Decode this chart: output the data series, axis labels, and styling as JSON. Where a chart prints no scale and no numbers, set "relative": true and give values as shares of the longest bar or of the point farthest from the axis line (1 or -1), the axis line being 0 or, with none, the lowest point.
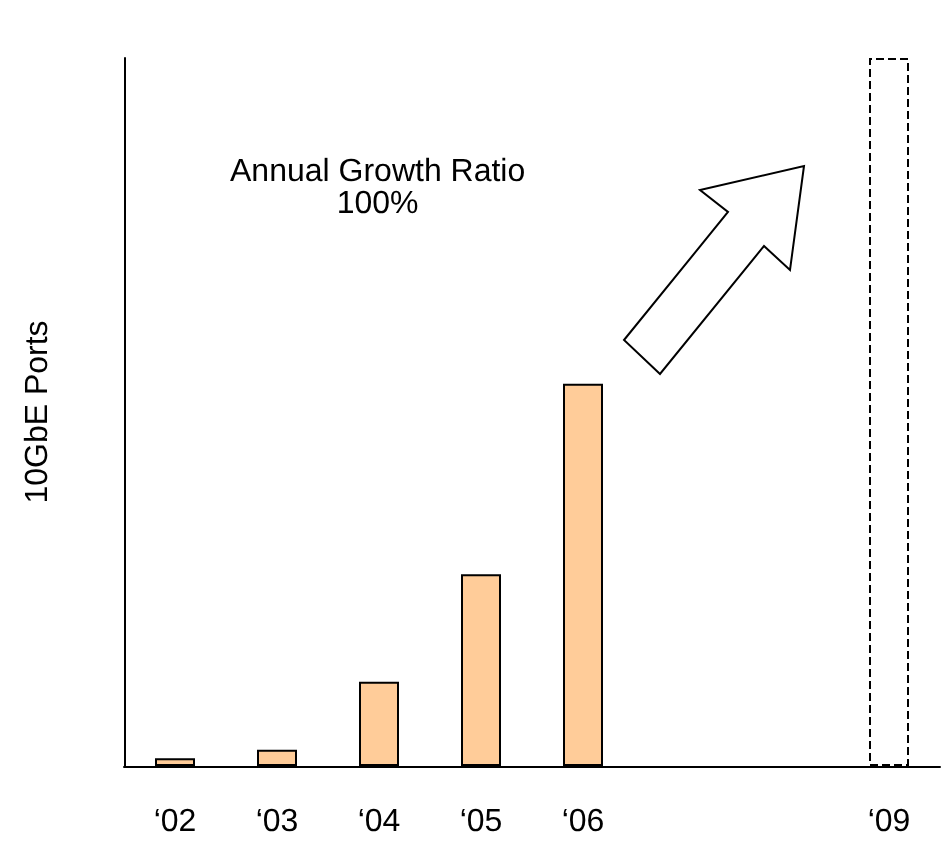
{
  "chart_data": {
    "type": "bar",
    "relative": true,
    "ylabel": "10GbE Ports",
    "annotations": [
      "Annual Growth Ratio\n100%"
    ],
    "categories": [
      "‘02",
      "‘03",
      "‘04",
      "‘05",
      "‘06",
      null,
      null,
      "‘09"
    ],
    "series": [
      {
        "color": "#ffcc99",
        "values": [
          0.011,
          0.023,
          0.119,
          0.271,
          0.54,
          null,
          null,
          null
        ]
      },
      {
        "color": "#ffffff",
        "line_style": "dashed",
        "values": [
          null,
          null,
          null,
          null,
          null,
          null,
          null,
          1
        ]
      }
    ]
  }
}
